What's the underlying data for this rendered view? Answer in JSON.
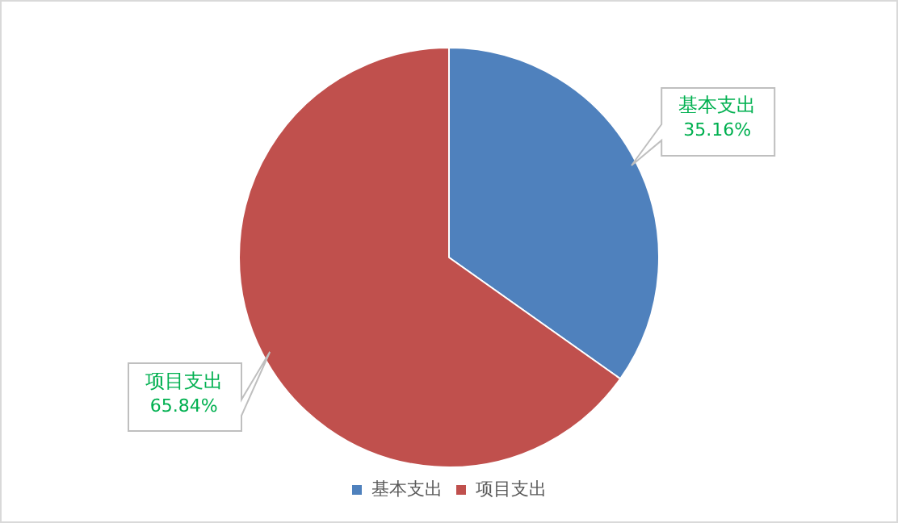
{
  "chart_data": {
    "type": "pie",
    "categories": [
      "基本支出",
      "项目支出"
    ],
    "values": [
      35.16,
      65.84
    ],
    "value_labels": [
      "35.16%",
      "65.84%"
    ],
    "colors": [
      "#4f81bd",
      "#c0504d"
    ],
    "legend": "bottom"
  }
}
